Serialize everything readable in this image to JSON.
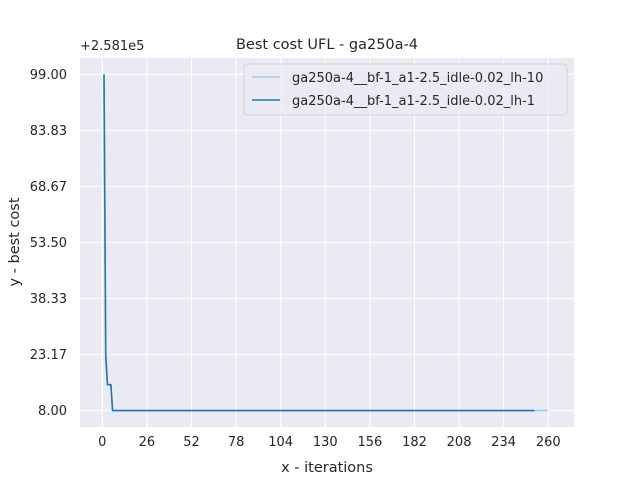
{
  "chart_data": {
    "type": "line",
    "title": "Best cost UFL - ga250a-4",
    "xlabel": "x - iterations",
    "ylabel": "y - best cost",
    "y_offset_label": "+2.581e5",
    "xlim": [
      -13,
      275
    ],
    "ylim": [
      3.55,
      103.45
    ],
    "x_ticks": [
      0,
      26,
      52,
      78,
      104,
      130,
      156,
      182,
      208,
      234,
      260
    ],
    "y_ticks": [
      8.0,
      23.17,
      38.33,
      53.5,
      68.67,
      83.83,
      99.0
    ],
    "y_tick_labels": [
      "8.00",
      "23.17",
      "38.33",
      "53.50",
      "68.67",
      "83.83",
      "99.00"
    ],
    "grid": true,
    "legend_position": "top-right",
    "series": [
      {
        "name": "ga250a-4__bf-1_a1-2.5_idle-0.02_lh-10",
        "color": "#a6cee3",
        "points": [
          [
            1,
            99.0
          ],
          [
            2,
            23.0
          ],
          [
            3,
            15.0
          ],
          [
            5,
            15.0
          ],
          [
            6,
            8.0
          ],
          [
            260,
            8.0
          ]
        ]
      },
      {
        "name": "ga250a-4__bf-1_a1-2.5_idle-0.02_lh-1",
        "color": "#1f78b4",
        "points": [
          [
            1,
            99.0
          ],
          [
            2,
            23.0
          ],
          [
            3,
            15.0
          ],
          [
            5,
            15.0
          ],
          [
            6,
            8.0
          ],
          [
            252,
            8.0
          ]
        ]
      }
    ]
  }
}
